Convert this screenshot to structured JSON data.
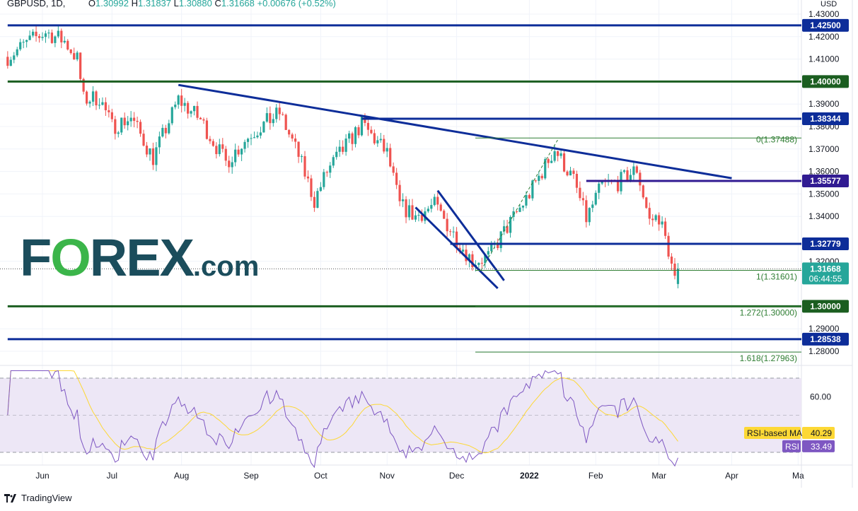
{
  "header": {
    "symbol": "GBPUSD, 1D,",
    "open_label": "O",
    "open": "1.30992",
    "high_label": "H",
    "high": "1.31837",
    "low_label": "L",
    "low": "1.30880",
    "close_label": "C",
    "close": "1.31668",
    "change": "+0.00676 (+0.52%)"
  },
  "axis_unit": "USD",
  "countdown": "06:44:55",
  "logo_text": "FOREX.com",
  "footer": {
    "brand": "TradingView",
    "icon": "tradingview-logo-icon"
  },
  "colors": {
    "up": "#26a69a",
    "down": "#ef5350",
    "blue_level": "#0d2d99",
    "green_level": "#1b5e20",
    "purple_level": "#311b92",
    "fib": "#2e7d32",
    "rsi": "#7e57c2",
    "rsi_ma": "#fdd835",
    "rsi_band": "#ede7f6"
  },
  "chart_data": {
    "type": "candlestick",
    "symbol": "GBPUSD",
    "timeframe": "1D",
    "ylim": [
      1.275,
      1.435
    ],
    "y_ticks": [
      "1.43000",
      "1.42000",
      "1.41000",
      "1.39000",
      "1.38000",
      "1.37000",
      "1.36000",
      "1.35000",
      "1.34000",
      "1.32000",
      "1.29000",
      "1.28000"
    ],
    "x_ticks": [
      {
        "label": "Jun",
        "date": "2021-06-01"
      },
      {
        "label": "Jul",
        "date": "2021-07-01"
      },
      {
        "label": "Aug",
        "date": "2021-08-02"
      },
      {
        "label": "Sep",
        "date": "2021-09-01"
      },
      {
        "label": "Oct",
        "date": "2021-10-01"
      },
      {
        "label": "Nov",
        "date": "2021-11-01"
      },
      {
        "label": "Dec",
        "date": "2021-12-01"
      },
      {
        "label": "2022",
        "date": "2022-01-03"
      },
      {
        "label": "Feb",
        "date": "2022-02-01"
      },
      {
        "label": "Mar",
        "date": "2022-03-01"
      },
      {
        "label": "Apr",
        "date": "2022-04-01"
      },
      {
        "label": "Ma",
        "date": "2022-05-02"
      }
    ],
    "approx_close_path": [
      [
        "2021-05-17",
        1.411
      ],
      [
        "2021-05-26",
        1.418
      ],
      [
        "2021-06-02",
        1.422
      ],
      [
        "2021-06-10",
        1.418
      ],
      [
        "2021-06-16",
        1.41
      ],
      [
        "2021-06-18",
        1.392
      ],
      [
        "2021-06-25",
        1.393
      ],
      [
        "2021-07-01",
        1.38
      ],
      [
        "2021-07-09",
        1.384
      ],
      [
        "2021-07-20",
        1.366
      ],
      [
        "2021-07-30",
        1.392
      ],
      [
        "2021-08-10",
        1.383
      ],
      [
        "2021-08-20",
        1.364
      ],
      [
        "2021-09-01",
        1.377
      ],
      [
        "2021-09-14",
        1.386
      ],
      [
        "2021-09-22",
        1.367
      ],
      [
        "2021-09-29",
        1.347
      ],
      [
        "2021-10-05",
        1.36
      ],
      [
        "2021-10-20",
        1.381
      ],
      [
        "2021-11-01",
        1.368
      ],
      [
        "2021-11-05",
        1.345
      ],
      [
        "2021-11-12",
        1.34
      ],
      [
        "2021-11-22",
        1.345
      ],
      [
        "2021-12-01",
        1.33
      ],
      [
        "2021-12-08",
        1.32
      ],
      [
        "2021-12-15",
        1.322
      ],
      [
        "2021-12-22",
        1.333
      ],
      [
        "2022-01-03",
        1.35
      ],
      [
        "2022-01-13",
        1.37
      ],
      [
        "2022-01-21",
        1.356
      ],
      [
        "2022-01-27",
        1.339
      ],
      [
        "2022-02-03",
        1.354
      ],
      [
        "2022-02-10",
        1.355
      ],
      [
        "2022-02-18",
        1.361
      ],
      [
        "2022-02-24",
        1.338
      ],
      [
        "2022-03-01",
        1.34
      ],
      [
        "2022-03-04",
        1.325
      ],
      [
        "2022-03-08",
        1.311
      ],
      [
        "2022-03-09",
        1.3167
      ]
    ],
    "levels": [
      {
        "price": 1.425,
        "label": "1.42500",
        "color": "blue",
        "from": "2021-05-17"
      },
      {
        "price": 1.4,
        "label": "1.40000",
        "color": "green",
        "from": "2021-05-17"
      },
      {
        "price": 1.38344,
        "label": "1.38344",
        "color": "blue",
        "from": "2021-10-20"
      },
      {
        "price": 1.35577,
        "label": "1.35577",
        "color": "purple",
        "from": "2022-01-27"
      },
      {
        "price": 1.32779,
        "label": "1.32779",
        "color": "blue",
        "from": "2021-11-29"
      },
      {
        "price": 1.3,
        "label": "1.30000",
        "color": "green",
        "from": "2021-05-17"
      },
      {
        "price": 1.28538,
        "label": "1.28538",
        "color": "blue",
        "from": "2021-05-17"
      }
    ],
    "current_price": {
      "price": 1.31668,
      "label": "1.31668"
    },
    "fib": [
      {
        "ratio": "0",
        "price": 1.37488,
        "label": "0(1.37488)"
      },
      {
        "ratio": "1",
        "price": 1.31601,
        "label": "1(1.31601)"
      },
      {
        "ratio": "1.272",
        "price": 1.3,
        "label": "1.272(1.30000)"
      },
      {
        "ratio": "1.618",
        "price": 1.27963,
        "label": "1.618(1.27963)"
      }
    ],
    "trendlines": [
      {
        "from": [
          "2021-07-30",
          1.3985
        ],
        "to": [
          "2022-04-01",
          1.357
        ]
      },
      {
        "from": [
          "2021-11-23",
          1.3515
        ],
        "to": [
          "2021-12-22",
          1.3115
        ]
      },
      {
        "from": [
          "2021-11-12",
          1.344
        ],
        "to": [
          "2021-12-20",
          1.308
        ]
      }
    ],
    "rsi": {
      "name": "RSI",
      "value": "33.49",
      "ma_name": "RSI-based MA",
      "ma_value": "40.29",
      "ticks": [
        "60.00"
      ],
      "bands": [
        70,
        30
      ],
      "ylim": [
        20,
        75
      ]
    }
  }
}
